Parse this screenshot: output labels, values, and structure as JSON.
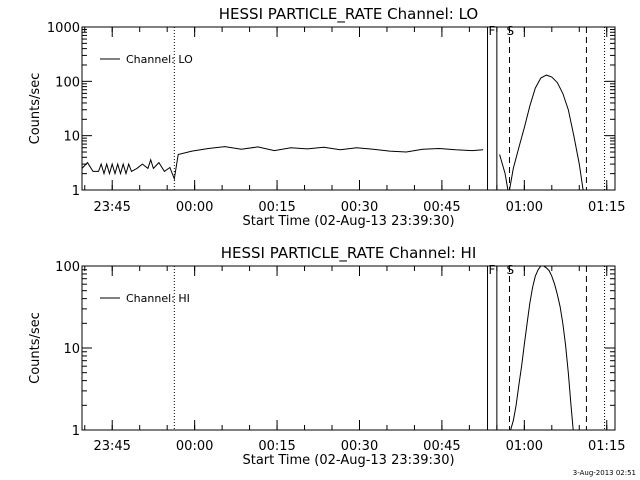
{
  "chart_data": [
    {
      "type": "line",
      "title": "HESSI PARTICLE_RATE Channel: LO",
      "xlabel": "Start Time (02-Aug-13 23:39:30)",
      "ylabel": "Counts/sec",
      "yscale": "log",
      "ylim": [
        1,
        1000
      ],
      "ytick_labels": [
        "1",
        "10",
        "100",
        "1000"
      ],
      "xlim_minutes": [
        0,
        97
      ],
      "xtick_labels": [
        "23:45",
        "00:00",
        "00:15",
        "00:30",
        "00:45",
        "01:00",
        "01:15"
      ],
      "legend": {
        "position": "top-left",
        "label": "Channel: LO"
      },
      "flag_labels": [
        "F",
        "S"
      ],
      "series": [
        {
          "name": "Channel: LO",
          "segments": [
            [
              [
                0.0,
                2.5
              ],
              [
                1.0,
                3.2
              ],
              [
                2.0,
                2.2
              ],
              [
                3.0,
                2.2
              ],
              [
                3.5,
                3.0
              ],
              [
                4.0,
                2.0
              ],
              [
                4.5,
                3.0
              ],
              [
                5.0,
                2.0
              ],
              [
                5.5,
                3.0
              ],
              [
                6.0,
                2.0
              ],
              [
                6.5,
                3.0
              ],
              [
                7.0,
                2.0
              ],
              [
                7.5,
                3.0
              ],
              [
                8.0,
                2.0
              ],
              [
                8.5,
                3.0
              ],
              [
                9.0,
                2.2
              ],
              [
                10.0,
                2.5
              ],
              [
                11.0,
                3.0
              ],
              [
                12.0,
                2.5
              ],
              [
                12.5,
                3.6
              ],
              [
                13.0,
                2.5
              ],
              [
                14.0,
                3.2
              ],
              [
                15.0,
                2.2
              ],
              [
                16.0,
                2.6
              ],
              [
                16.8,
                1.6
              ],
              [
                17.5,
                4.5
              ],
              [
                20.0,
                5.2
              ],
              [
                23.0,
                5.8
              ],
              [
                26.0,
                6.3
              ],
              [
                29.0,
                5.6
              ],
              [
                32.0,
                6.2
              ],
              [
                35.0,
                5.3
              ],
              [
                38.0,
                6.0
              ],
              [
                41.0,
                5.7
              ],
              [
                44.0,
                6.1
              ],
              [
                47.0,
                5.5
              ],
              [
                50.0,
                6.0
              ],
              [
                53.0,
                5.6
              ],
              [
                56.0,
                5.2
              ],
              [
                59.0,
                5.0
              ],
              [
                62.0,
                5.6
              ],
              [
                65.0,
                5.8
              ],
              [
                68.0,
                5.5
              ],
              [
                71.0,
                5.3
              ],
              [
                73.0,
                5.5
              ]
            ],
            [
              [
                76.0,
                4.5
              ],
              [
                77.0,
                2.0
              ],
              [
                77.5,
                1.0
              ]
            ],
            [
              [
                77.8,
                1.0
              ],
              [
                78.5,
                2.5
              ],
              [
                79.5,
                6.0
              ],
              [
                80.5,
                14.0
              ],
              [
                81.5,
                35.0
              ],
              [
                82.5,
                75.0
              ],
              [
                83.5,
                115.0
              ],
              [
                84.5,
                130.0
              ],
              [
                85.5,
                120.0
              ],
              [
                86.5,
                95.0
              ],
              [
                87.5,
                60.0
              ],
              [
                88.5,
                30.0
              ],
              [
                89.5,
                10.0
              ],
              [
                90.5,
                3.0
              ],
              [
                91.2,
                1.0
              ]
            ]
          ]
        }
      ],
      "markers": [
        {
          "x": 16.8,
          "style": "dotted"
        },
        {
          "x": 73.8,
          "style": "solid"
        },
        {
          "x": 75.5,
          "style": "solid"
        },
        {
          "x": 77.8,
          "style": "dashed"
        },
        {
          "x": 91.8,
          "style": "dashed"
        },
        {
          "x": 95.1,
          "style": "dotted"
        }
      ]
    },
    {
      "type": "line",
      "title": "HESSI PARTICLE_RATE Channel: HI",
      "xlabel": "Start Time (02-Aug-13 23:39:30)",
      "ylabel": "Counts/sec",
      "yscale": "log",
      "ylim": [
        1,
        100
      ],
      "ytick_labels": [
        "1",
        "10",
        "100"
      ],
      "xlim_minutes": [
        0,
        97
      ],
      "xtick_labels": [
        "23:45",
        "00:00",
        "00:15",
        "00:30",
        "00:45",
        "01:00",
        "01:15"
      ],
      "legend": {
        "position": "top-left",
        "label": "Channel: HI"
      },
      "flag_labels": [
        "F",
        "S"
      ],
      "series": [
        {
          "name": "Channel: HI",
          "segments": [
            [
              [
                78.0,
                1.0
              ],
              [
                78.5,
                1.3
              ],
              [
                79.0,
                2.0
              ],
              [
                79.5,
                3.5
              ],
              [
                80.0,
                6.0
              ],
              [
                80.5,
                11.0
              ],
              [
                81.0,
                20.0
              ],
              [
                81.5,
                35.0
              ],
              [
                82.0,
                55.0
              ],
              [
                82.5,
                75.0
              ],
              [
                83.0,
                90.0
              ],
              [
                83.5,
                100.0
              ],
              [
                84.0,
                100.0
              ],
              [
                84.5,
                95.0
              ],
              [
                85.0,
                88.0
              ],
              [
                85.5,
                75.0
              ],
              [
                86.0,
                60.0
              ],
              [
                86.5,
                45.0
              ],
              [
                87.0,
                32.0
              ],
              [
                87.5,
                20.0
              ],
              [
                88.0,
                11.0
              ],
              [
                88.5,
                5.0
              ],
              [
                89.0,
                2.0
              ],
              [
                89.4,
                1.0
              ]
            ]
          ]
        }
      ],
      "markers": [
        {
          "x": 16.8,
          "style": "dotted"
        },
        {
          "x": 73.8,
          "style": "solid"
        },
        {
          "x": 75.5,
          "style": "solid"
        },
        {
          "x": 77.8,
          "style": "dashed"
        },
        {
          "x": 91.8,
          "style": "dashed"
        },
        {
          "x": 95.1,
          "style": "dotted"
        }
      ]
    }
  ],
  "footer": {
    "timestamp": "3-Aug-2013 02:51"
  }
}
